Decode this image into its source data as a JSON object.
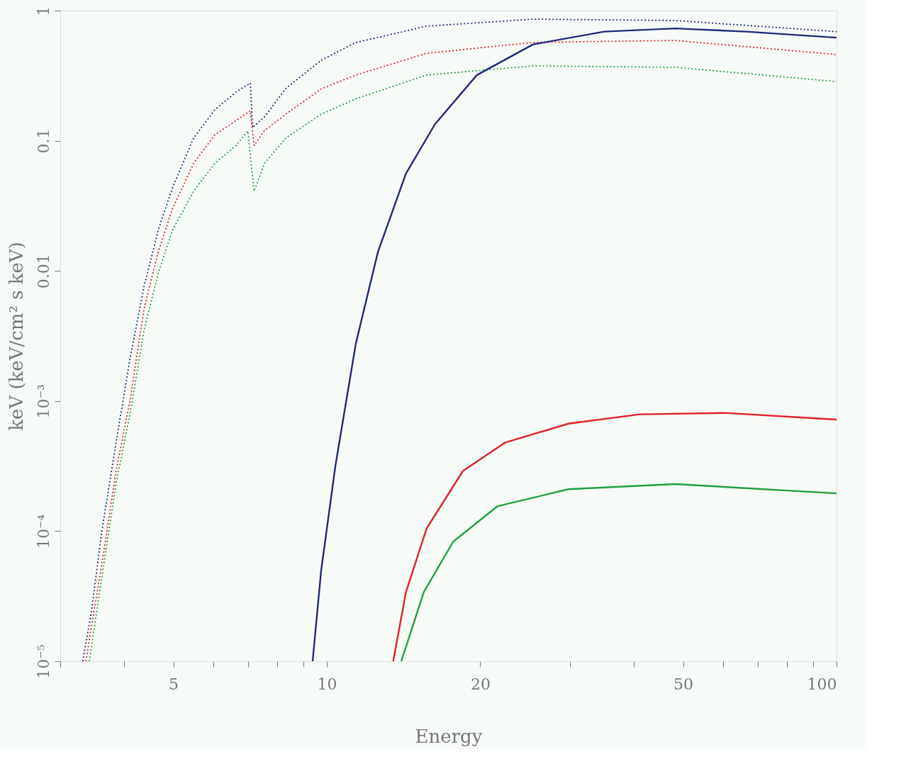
{
  "chart_data": {
    "type": "line",
    "xlabel": "Energy",
    "ylabel": "keV (keV/cm² s keV)",
    "log": "xy",
    "grid": false,
    "xlim": [
      3,
      100
    ],
    "ylim": [
      1e-05,
      1
    ],
    "xticks": [
      {
        "value": 3,
        "label": null
      },
      {
        "value": 4,
        "label": null
      },
      5,
      {
        "value": 6,
        "label": null
      },
      {
        "value": 7,
        "label": null
      },
      {
        "value": 8,
        "label": null
      },
      {
        "value": 9,
        "label": null
      },
      10,
      20,
      {
        "value": 30,
        "label": null
      },
      {
        "value": 40,
        "label": null
      },
      50,
      {
        "value": 60,
        "label": null
      },
      {
        "value": 70,
        "label": null
      },
      {
        "value": 80,
        "label": null
      },
      {
        "value": 90,
        "label": null
      },
      100
    ],
    "yticks": [
      {
        "value": 1e-05,
        "label": "10⁻⁵"
      },
      {
        "value": 0.0001,
        "label": "10⁻⁴"
      },
      {
        "value": 0.001,
        "label": "10⁻³"
      },
      0.01,
      0.1,
      1
    ],
    "series": [
      {
        "color": "#1f2a7a",
        "line_style": "dotted",
        "x": [
          3.32,
          3.45,
          3.62,
          3.86,
          4.11,
          4.38,
          4.67,
          4.98,
          5.48,
          6.03,
          6.64,
          7.08,
          7.15,
          7.55,
          8.31,
          9.75,
          11.4,
          15.7,
          25.4,
          48.2,
          100
        ],
        "values": [
          1e-05,
          2.34e-05,
          0.0001,
          0.00048,
          0.0021,
          0.0076,
          0.0205,
          0.0435,
          0.105,
          0.173,
          0.237,
          0.278,
          0.126,
          0.153,
          0.252,
          0.416,
          0.569,
          0.76,
          0.86,
          0.84,
          0.69
        ]
      },
      {
        "color": "#e0202a",
        "line_style": "dotted",
        "x": [
          3.37,
          3.45,
          3.62,
          3.86,
          4.11,
          4.38,
          4.67,
          4.98,
          5.48,
          6.03,
          6.64,
          7.08,
          7.2,
          7.55,
          8.31,
          9.75,
          11.4,
          15.7,
          25.4,
          48.2,
          100
        ],
        "values": [
          1e-05,
          1.8e-05,
          5.6e-05,
          0.00029,
          0.001,
          0.0051,
          0.014,
          0.03,
          0.067,
          0.111,
          0.143,
          0.17,
          0.092,
          0.12,
          0.16,
          0.25,
          0.32,
          0.47,
          0.57,
          0.59,
          0.46
        ]
      },
      {
        "color": "#20a040",
        "line_style": "dotted",
        "x": [
          3.42,
          3.62,
          3.86,
          4.11,
          4.38,
          4.67,
          4.98,
          5.48,
          6.03,
          6.64,
          7.0,
          7.2,
          7.55,
          8.31,
          9.75,
          11.4,
          15.7,
          25.4,
          48.2,
          100
        ],
        "values": [
          1e-05,
          4.4e-05,
          0.00023,
          0.00079,
          0.0035,
          0.0096,
          0.0205,
          0.041,
          0.067,
          0.092,
          0.119,
          0.041,
          0.067,
          0.105,
          0.16,
          0.21,
          0.32,
          0.376,
          0.367,
          0.285
        ]
      },
      {
        "color": "#1f2a7a",
        "line_style": "solid",
        "x": [
          9.38,
          9.75,
          10.4,
          11.4,
          12.6,
          14.3,
          16.3,
          19.7,
          25.4,
          35,
          48.2,
          66.5,
          100
        ],
        "values": [
          1e-05,
          5e-05,
          0.00032,
          0.00275,
          0.014,
          0.056,
          0.134,
          0.32,
          0.55,
          0.69,
          0.73,
          0.69,
          0.62
        ]
      },
      {
        "color": "#e0202a",
        "line_style": "solid",
        "x": [
          13.5,
          14.3,
          15.7,
          18.5,
          22.4,
          29.8,
          41.1,
          60.4,
          100
        ],
        "values": [
          1e-05,
          3.4e-05,
          0.000105,
          0.00029,
          0.00048,
          0.00067,
          0.00079,
          0.00081,
          0.00072
        ]
      },
      {
        "color": "#20a040",
        "line_style": "solid",
        "x": [
          14.0,
          15.5,
          17.7,
          21.6,
          29.8,
          48.2,
          100
        ],
        "values": [
          1e-05,
          3.4e-05,
          8.3e-05,
          0.000155,
          0.00021,
          0.00023,
          0.000195
        ]
      }
    ]
  }
}
